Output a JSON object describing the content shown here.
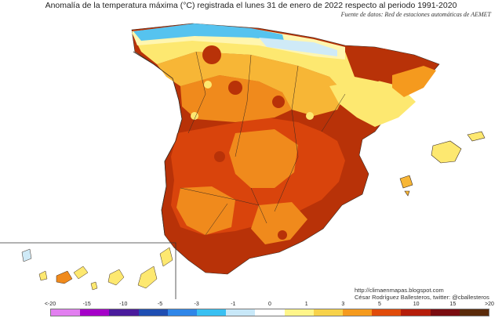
{
  "title": "Anomalía de la temperatura máxima (°C) registrada el lunes 31 de enero de 2022 respecto al periodo 1991-2020",
  "source": "Fuente de datos: Red de estaciones automáticas de AEMET",
  "credits": {
    "url": "http://climaenmapas.blogspot.com",
    "author": "César Rodríguez Ballesteros, twitter: @cballesteros"
  },
  "legend": {
    "ticks": [
      "<-20",
      "-15",
      "-10",
      "-5",
      "-3",
      "-1",
      "0",
      "1",
      "3",
      "5",
      "10",
      "15",
      ">20"
    ],
    "colors": [
      "#e27ff0",
      "#a500c8",
      "#4a1b9c",
      "#1f4eb2",
      "#2f86e8",
      "#39c0f2",
      "#c8e8f8",
      "#ffffff",
      "#fff58a",
      "#f7d24a",
      "#f59a1e",
      "#e04b0a",
      "#b51d0a",
      "#7a0c10",
      "#5a2a0a"
    ]
  },
  "map_colors": {
    "deep_red": "#b83208",
    "red_orange": "#d9440c",
    "orange": "#f08a1c",
    "amber": "#f7b636",
    "yellow": "#fde870",
    "pale_yellow": "#fff6b0",
    "pale_blue": "#cfeaf7",
    "light_blue": "#56c3ef",
    "border": "#3a2a20"
  }
}
